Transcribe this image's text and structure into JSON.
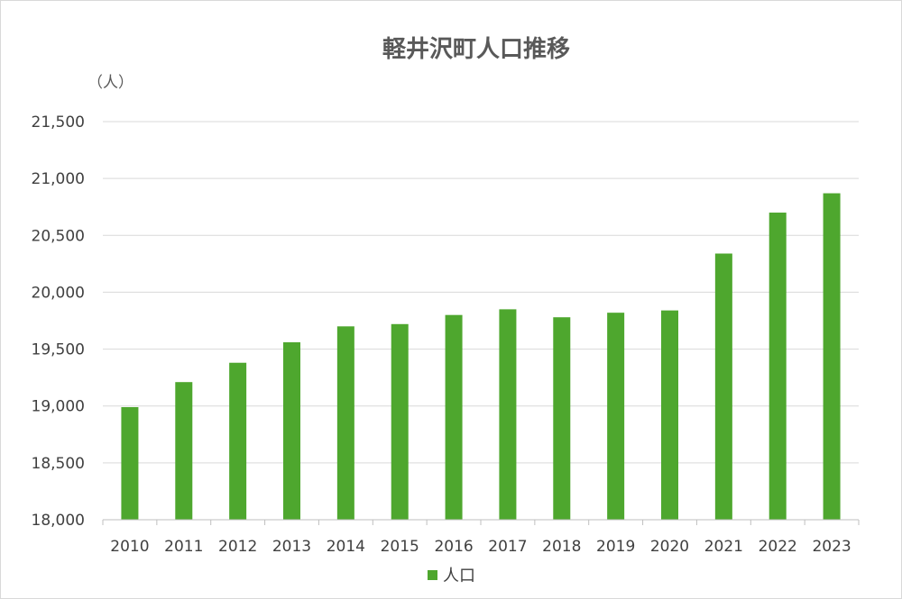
{
  "chart_data": {
    "type": "bar",
    "title": "軽井沢町人口推移",
    "unit_label": "（人）",
    "xlabel": "",
    "ylabel": "",
    "categories": [
      "2010",
      "2011",
      "2012",
      "2013",
      "2014",
      "2015",
      "2016",
      "2017",
      "2018",
      "2019",
      "2020",
      "2021",
      "2022",
      "2023"
    ],
    "series": [
      {
        "name": "人口",
        "color": "#4ea72e",
        "values": [
          18990,
          19210,
          19380,
          19560,
          19700,
          19720,
          19800,
          19850,
          19780,
          19820,
          19840,
          20340,
          20700,
          20870
        ]
      }
    ],
    "ylim": [
      18000,
      21500
    ],
    "yticks": [
      18000,
      18500,
      19000,
      19500,
      20000,
      20500,
      21000,
      21500
    ],
    "ytick_labels": [
      "18,000",
      "18,500",
      "19,000",
      "19,500",
      "20,000",
      "20,500",
      "21,000",
      "21,500"
    ],
    "grid": true,
    "legend_position": "bottom"
  }
}
